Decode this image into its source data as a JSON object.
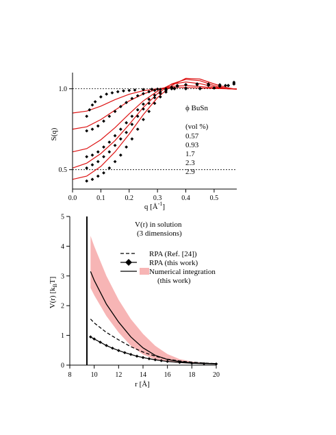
{
  "chart_data": [
    {
      "type": "scatter",
      "title": "",
      "xlabel": "q [Å",
      "xlabel_sup": "-1",
      "xlabel_end": "]",
      "ylabel": "S(q)",
      "xlim": [
        0.0,
        0.58
      ],
      "ylim": [
        0.38,
        1.1
      ],
      "x_ticks": [
        "0.0",
        "0.1",
        "0.2",
        "0.3",
        "0.4",
        "0.5"
      ],
      "x_tick_values": [
        0.0,
        0.1,
        0.2,
        0.3,
        0.4,
        0.5
      ],
      "y_ticks": [
        "0.5",
        "1.0"
      ],
      "y_tick_values": [
        0.5,
        1.0
      ],
      "reference_lines": [
        0.5,
        1.0
      ],
      "legend": {
        "title": "ϕ BuSn",
        "subtitle": "(vol %)",
        "entries": [
          "0.57",
          "0.93",
          "1.7",
          "2.3",
          "2.9"
        ]
      },
      "fit_color": "#dd1111",
      "marker_color": "#000000",
      "series": [
        {
          "name": "0.57",
          "data": {
            "x": [
              0.05,
              0.06,
              0.07,
              0.08,
              0.1,
              0.12,
              0.14,
              0.16,
              0.18,
              0.2,
              0.22,
              0.25,
              0.28,
              0.3,
              0.33,
              0.36,
              0.4,
              0.45,
              0.5,
              0.54,
              0.57
            ],
            "y": [
              0.83,
              0.87,
              0.9,
              0.92,
              0.95,
              0.967,
              0.975,
              0.982,
              0.987,
              0.99,
              0.992,
              0.995,
              0.997,
              0.998,
              0.999,
              1.0,
              1.0,
              1.0,
              1.005,
              1.02,
              1.04
            ]
          },
          "fit": {
            "x": [
              0.0,
              0.05,
              0.1,
              0.15,
              0.2,
              0.25,
              0.3,
              0.35,
              0.4,
              0.45,
              0.5,
              0.55,
              0.58
            ],
            "y": [
              0.85,
              0.862,
              0.893,
              0.933,
              0.966,
              0.988,
              1.0,
              1.007,
              1.008,
              1.005,
              1.002,
              1.0,
              1.0
            ]
          }
        },
        {
          "name": "0.93",
          "data": {
            "x": [
              0.05,
              0.07,
              0.09,
              0.11,
              0.13,
              0.15,
              0.17,
              0.19,
              0.21,
              0.23,
              0.25,
              0.27,
              0.29,
              0.31,
              0.33,
              0.36,
              0.4,
              0.45,
              0.5,
              0.54,
              0.57
            ],
            "y": [
              0.74,
              0.75,
              0.77,
              0.8,
              0.83,
              0.86,
              0.89,
              0.915,
              0.94,
              0.957,
              0.97,
              0.982,
              0.99,
              0.996,
              1.0,
              1.003,
              1.004,
              1.003,
              1.005,
              1.02,
              1.03
            ]
          },
          "fit": {
            "x": [
              0.0,
              0.05,
              0.1,
              0.15,
              0.2,
              0.25,
              0.3,
              0.35,
              0.4,
              0.45,
              0.5,
              0.55,
              0.58
            ],
            "y": [
              0.75,
              0.765,
              0.81,
              0.868,
              0.925,
              0.968,
              0.998,
              1.015,
              1.02,
              1.014,
              1.006,
              1.0,
              1.0
            ]
          }
        },
        {
          "name": "1.7",
          "data": {
            "x": [
              0.05,
              0.07,
              0.09,
              0.11,
              0.13,
              0.15,
              0.17,
              0.19,
              0.21,
              0.23,
              0.25,
              0.27,
              0.29,
              0.31,
              0.33,
              0.35,
              0.37,
              0.4,
              0.44,
              0.48,
              0.52,
              0.55,
              0.57
            ],
            "y": [
              0.58,
              0.59,
              0.61,
              0.64,
              0.67,
              0.71,
              0.75,
              0.79,
              0.83,
              0.87,
              0.905,
              0.935,
              0.96,
              0.98,
              0.995,
              1.01,
              1.02,
              1.025,
              1.025,
              1.02,
              1.015,
              1.02,
              1.03
            ]
          },
          "fit": {
            "x": [
              0.0,
              0.05,
              0.1,
              0.15,
              0.2,
              0.25,
              0.3,
              0.35,
              0.4,
              0.45,
              0.5,
              0.55,
              0.58
            ],
            "y": [
              0.61,
              0.63,
              0.685,
              0.76,
              0.845,
              0.925,
              0.985,
              1.028,
              1.042,
              1.032,
              1.012,
              1.0,
              0.998
            ]
          }
        },
        {
          "name": "2.3",
          "data": {
            "x": [
              0.05,
              0.07,
              0.09,
              0.11,
              0.13,
              0.15,
              0.17,
              0.19,
              0.21,
              0.23,
              0.25,
              0.27,
              0.29,
              0.31,
              0.33,
              0.35,
              0.37,
              0.4,
              0.44,
              0.48,
              0.52,
              0.55,
              0.57
            ],
            "y": [
              0.51,
              0.53,
              0.55,
              0.58,
              0.61,
              0.65,
              0.69,
              0.73,
              0.78,
              0.83,
              0.875,
              0.91,
              0.945,
              0.97,
              0.99,
              1.005,
              1.015,
              1.025,
              1.03,
              1.025,
              1.02,
              1.02,
              1.03
            ]
          },
          "fit": {
            "x": [
              0.0,
              0.05,
              0.1,
              0.15,
              0.2,
              0.25,
              0.3,
              0.35,
              0.4,
              0.45,
              0.5,
              0.55,
              0.58
            ],
            "y": [
              0.51,
              0.54,
              0.6,
              0.68,
              0.78,
              0.885,
              0.97,
              1.03,
              1.058,
              1.05,
              1.02,
              1.0,
              0.997
            ]
          }
        },
        {
          "name": "2.9",
          "data": {
            "x": [
              0.05,
              0.07,
              0.09,
              0.11,
              0.13,
              0.15,
              0.17,
              0.19,
              0.21,
              0.23,
              0.25,
              0.27,
              0.29,
              0.31,
              0.33,
              0.35,
              0.37,
              0.4,
              0.44,
              0.48,
              0.52,
              0.55,
              0.57
            ],
            "y": [
              0.43,
              0.44,
              0.46,
              0.48,
              0.51,
              0.55,
              0.59,
              0.64,
              0.69,
              0.75,
              0.81,
              0.86,
              0.91,
              0.95,
              0.98,
              1.0,
              1.015,
              1.025,
              1.03,
              1.03,
              1.025,
              1.02,
              1.03
            ]
          },
          "fit": {
            "x": [
              0.0,
              0.05,
              0.1,
              0.15,
              0.2,
              0.25,
              0.3,
              0.35,
              0.4,
              0.45,
              0.5,
              0.55,
              0.58
            ],
            "y": [
              0.44,
              0.46,
              0.52,
              0.61,
              0.72,
              0.84,
              0.945,
              1.02,
              1.065,
              1.06,
              1.03,
              1.005,
              0.997
            ]
          }
        }
      ]
    },
    {
      "type": "line",
      "title": "",
      "annotation": [
        "V(r) in solution",
        "(3 dimensions)"
      ],
      "xlabel": "r [Å]",
      "ylabel_main": "V(r) [k",
      "ylabel_sub": "B",
      "ylabel_end": "T]",
      "xlim": [
        8,
        20
      ],
      "ylim": [
        0,
        5
      ],
      "x_ticks": [
        "8",
        "10",
        "12",
        "14",
        "16",
        "18",
        "20"
      ],
      "x_tick_values": [
        8,
        10,
        12,
        14,
        16,
        18,
        20
      ],
      "y_ticks": [
        "0",
        "1",
        "2",
        "3",
        "4",
        "5"
      ],
      "y_tick_values": [
        0,
        1,
        2,
        3,
        4,
        5
      ],
      "vertical_line_x": 9.4,
      "legend_entries": [
        "RPA (Ref. [24])",
        "RPA (this work)",
        "Numerical integration",
        "(this work)"
      ],
      "band_color": "#f7b5b5",
      "series": [
        {
          "name": "RPA (Ref. [24])",
          "style": "dashed",
          "x": [
            9.7,
            10,
            11,
            12,
            13,
            14,
            15,
            16,
            17,
            18,
            19,
            20
          ],
          "y": [
            1.55,
            1.42,
            1.1,
            0.85,
            0.62,
            0.44,
            0.3,
            0.2,
            0.14,
            0.1,
            0.07,
            0.05
          ]
        },
        {
          "name": "RPA (this work)",
          "style": "solid-diamond",
          "x": [
            9.7,
            10,
            10.5,
            11,
            11.5,
            12,
            12.5,
            13,
            13.5,
            14,
            14.5,
            15,
            15.5,
            16,
            17,
            18,
            19,
            20
          ],
          "y": [
            0.95,
            0.88,
            0.77,
            0.66,
            0.57,
            0.49,
            0.42,
            0.36,
            0.3,
            0.255,
            0.215,
            0.18,
            0.15,
            0.125,
            0.09,
            0.065,
            0.05,
            0.04
          ]
        },
        {
          "name": "Numerical integration",
          "style": "solid",
          "x": [
            9.7,
            10,
            11,
            12,
            13,
            14,
            15,
            16,
            17,
            18,
            19,
            20
          ],
          "y": [
            3.15,
            2.85,
            2.05,
            1.45,
            0.95,
            0.58,
            0.33,
            0.19,
            0.12,
            0.08,
            0.06,
            0.05
          ],
          "band_upper": [
            4.35,
            4.0,
            3.0,
            2.2,
            1.55,
            1.05,
            0.65,
            0.37,
            0.2,
            0.12,
            0.08,
            0.06
          ],
          "band_lower": [
            2.6,
            2.35,
            1.65,
            1.1,
            0.65,
            0.36,
            0.19,
            0.11,
            0.07,
            0.05,
            0.04,
            0.03
          ]
        }
      ]
    }
  ]
}
